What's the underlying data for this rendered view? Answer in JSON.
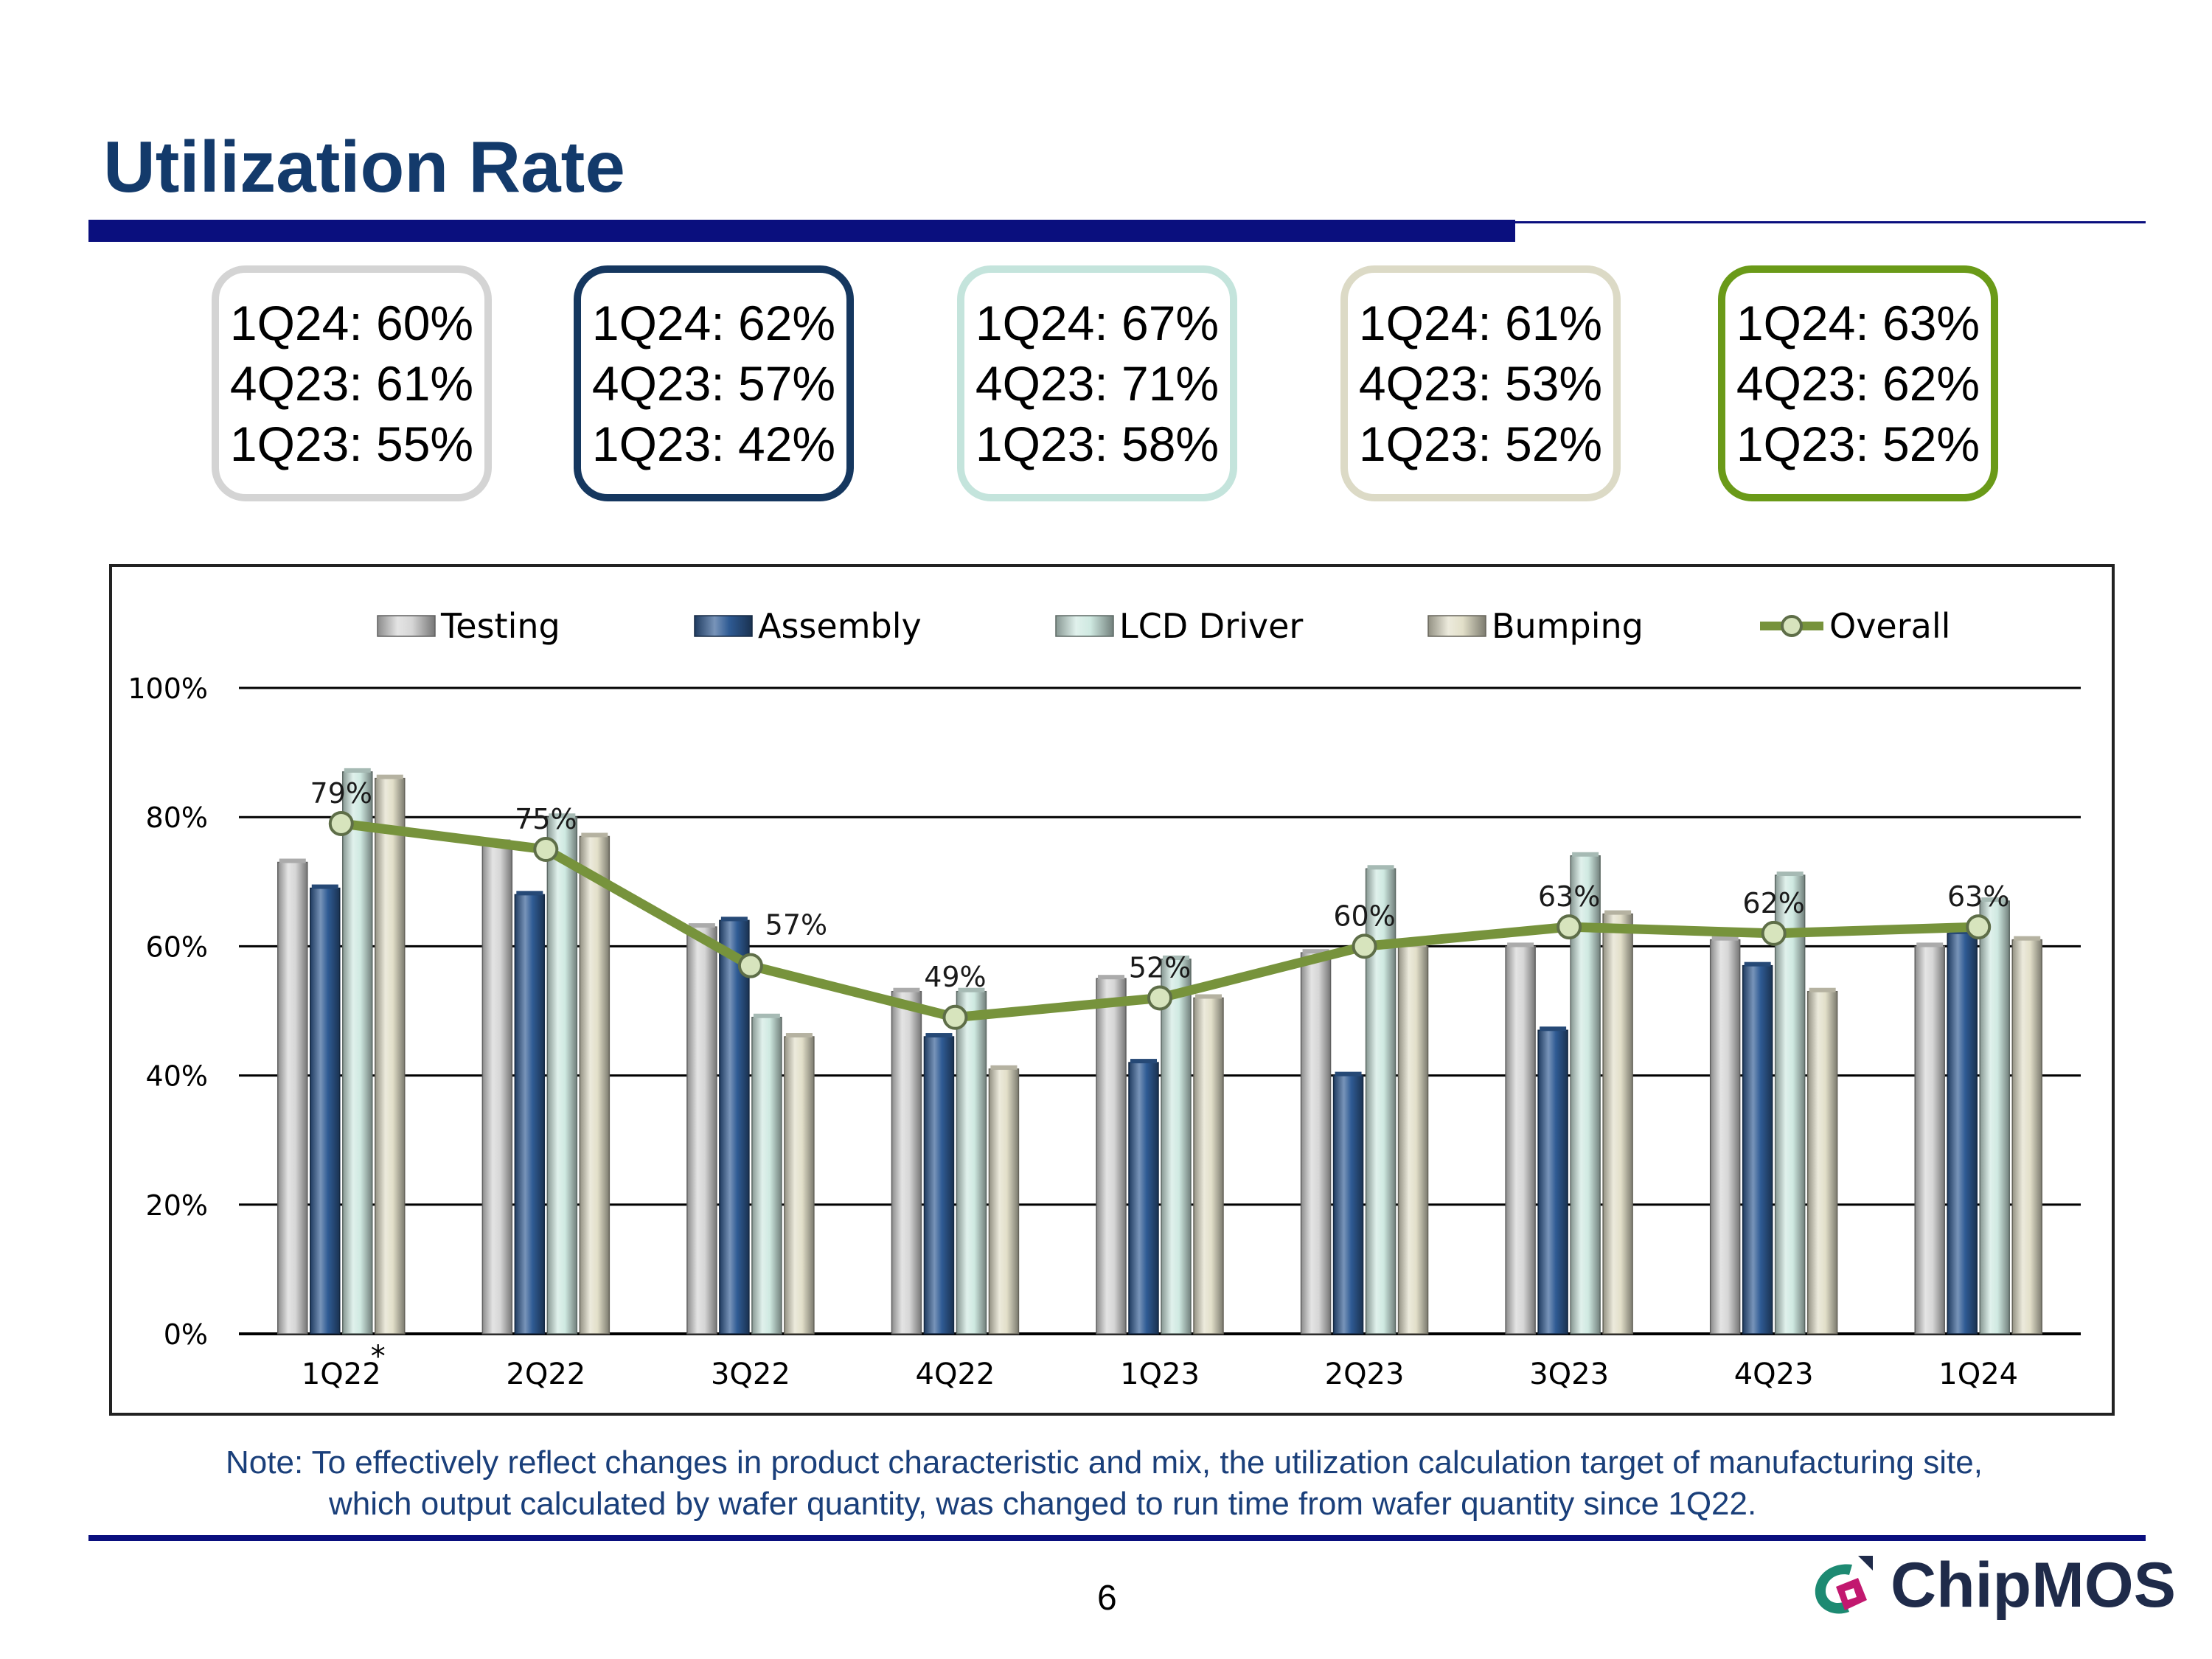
{
  "title": "Utilization Rate",
  "kpi_boxes": [
    {
      "name": "testing",
      "border_color": "#d4d4d4",
      "lines": [
        "1Q24: 60%",
        "4Q23: 61%",
        "1Q23: 55%"
      ]
    },
    {
      "name": "assembly",
      "border_color": "#15375f",
      "lines": [
        "1Q24: 62%",
        "4Q23: 57%",
        "1Q23: 42%"
      ]
    },
    {
      "name": "lcd-driver",
      "border_color": "#c4e4dc",
      "lines": [
        "1Q24: 67%",
        "4Q23: 71%",
        "1Q23: 58%"
      ]
    },
    {
      "name": "bumping",
      "border_color": "#dcdac6",
      "lines": [
        "1Q24: 61%",
        "4Q23: 53%",
        "1Q23: 52%"
      ]
    },
    {
      "name": "overall",
      "border_color": "#6a9a18",
      "lines": [
        "1Q24: 63%",
        "4Q23: 62%",
        "1Q23: 52%"
      ]
    }
  ],
  "chart_data": {
    "type": "bar",
    "categories": [
      "1Q22",
      "2Q22",
      "3Q22",
      "4Q22",
      "1Q23",
      "2Q23",
      "3Q23",
      "4Q23",
      "1Q24"
    ],
    "category_footnote": {
      "category": "1Q22",
      "mark": "*"
    },
    "series": [
      {
        "name": "Testing",
        "kind": "bar",
        "color": "#d6d6d6",
        "values": [
          73,
          76,
          63,
          53,
          55,
          59,
          60,
          61,
          60
        ]
      },
      {
        "name": "Assembly",
        "kind": "bar",
        "color": "#2f5b94",
        "values": [
          69,
          68,
          64,
          46,
          42,
          40,
          47,
          57,
          62
        ]
      },
      {
        "name": "LCD Driver",
        "kind": "bar",
        "color": "#cfe9e1",
        "values": [
          87,
          80,
          49,
          53,
          58,
          72,
          74,
          71,
          67
        ]
      },
      {
        "name": "Bumping",
        "kind": "bar",
        "color": "#e2dfc9",
        "values": [
          86,
          77,
          46,
          41,
          52,
          60,
          65,
          53,
          61
        ]
      },
      {
        "name": "Overall",
        "kind": "line",
        "color": "#77933c",
        "marker_color": "#d7e4bd",
        "values": [
          79,
          75,
          57,
          49,
          52,
          60,
          63,
          62,
          63
        ],
        "labels": [
          "79%",
          "75%",
          "57%",
          "49%",
          "52%",
          "60%",
          "63%",
          "62%",
          "63%"
        ]
      }
    ],
    "yticks": [
      "0%",
      "20%",
      "40%",
      "60%",
      "80%",
      "100%"
    ],
    "ylim": [
      0,
      100
    ],
    "legend": "top",
    "grid": true,
    "title": "",
    "xlabel": "",
    "ylabel": ""
  },
  "note": {
    "line1": "Note:  To effectively reflect changes in product characteristic and mix, the utilization calculation target of manufacturing site,",
    "line2": "which output calculated by wafer quantity, was changed to run time from wafer quantity since 1Q22."
  },
  "page_number": "6",
  "logo": {
    "text": "ChipMOS"
  }
}
